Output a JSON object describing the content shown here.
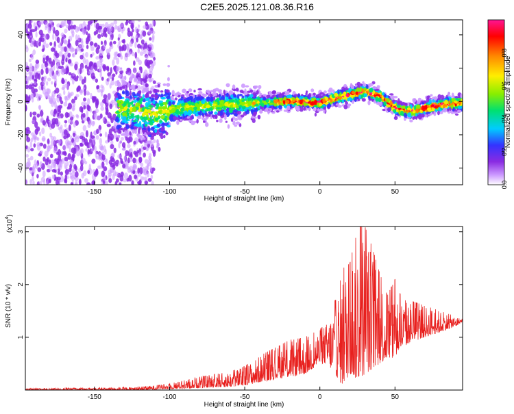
{
  "title": "C2E5.2025.121.08.36.R16",
  "colors": {
    "snr_line": "#e8201e",
    "colormap": [
      "#ffffff",
      "#cc99ff",
      "#8a2be2",
      "#3333ff",
      "#00ccff",
      "#00e070",
      "#88ee00",
      "#ffee00",
      "#ff8800",
      "#ff0000",
      "#ff1493"
    ]
  },
  "chart_data": [
    {
      "type": "heatmap",
      "title": "",
      "xlabel": "Height of straight line (km)",
      "ylabel": "Frequency (Hz)",
      "xlim": [
        -196,
        95
      ],
      "ylim": [
        -50,
        49
      ],
      "xticks": [
        -150,
        -100,
        -50,
        0,
        50
      ],
      "yticks": [
        -40,
        -20,
        0,
        20,
        40
      ],
      "colorbar": {
        "label": "Normalized spectral amplitude",
        "range": [
          0,
          1
        ],
        "ticks": [
          0.0,
          0.2,
          0.4,
          0.6,
          0.8
        ]
      },
      "ridge_frequency": {
        "x": [
          -130,
          -110,
          -100,
          -80,
          -60,
          -40,
          -25,
          -10,
          0,
          10,
          20,
          30,
          40,
          50,
          60,
          70,
          80,
          92
        ],
        "y": [
          -4,
          -8,
          -5,
          -3,
          -2,
          -1,
          0,
          0,
          -1,
          2,
          4,
          6,
          3,
          -4,
          -6,
          -4,
          -2,
          -1
        ]
      }
    },
    {
      "type": "line",
      "title": "",
      "xlabel": "Height of straight line (km)",
      "ylabel": "SNR (10 * v/v)",
      "y_scale_label": "(x10",
      "y_scale_exponent": "4",
      "y_scale_suffix": ")",
      "xlim": [
        -196,
        95
      ],
      "ylim": [
        0,
        3.1
      ],
      "xticks": [
        -150,
        -100,
        -50,
        0,
        50
      ],
      "yticks": [
        1,
        2,
        3
      ],
      "envelope": {
        "x": [
          -196,
          -150,
          -120,
          -100,
          -80,
          -60,
          -50,
          -40,
          -30,
          -20,
          -10,
          0,
          5,
          10,
          15,
          20,
          25,
          30,
          35,
          40,
          45,
          50,
          55,
          60,
          70,
          80,
          90,
          95
        ],
        "max": [
          0.03,
          0.04,
          0.06,
          0.12,
          0.25,
          0.35,
          0.45,
          0.65,
          0.8,
          0.95,
          1.0,
          1.15,
          1.3,
          1.7,
          2.3,
          2.4,
          3.1,
          3.1,
          2.7,
          2.2,
          1.8,
          2.1,
          1.7,
          1.7,
          1.6,
          1.5,
          1.4,
          1.35
        ],
        "min": [
          0.0,
          0.0,
          0.0,
          0.02,
          0.04,
          0.06,
          0.08,
          0.15,
          0.2,
          0.25,
          0.3,
          0.5,
          0.5,
          0.3,
          0.1,
          0.3,
          0.2,
          0.3,
          0.4,
          0.5,
          0.6,
          0.6,
          0.8,
          0.9,
          1.0,
          1.1,
          1.2,
          1.3
        ]
      }
    }
  ]
}
